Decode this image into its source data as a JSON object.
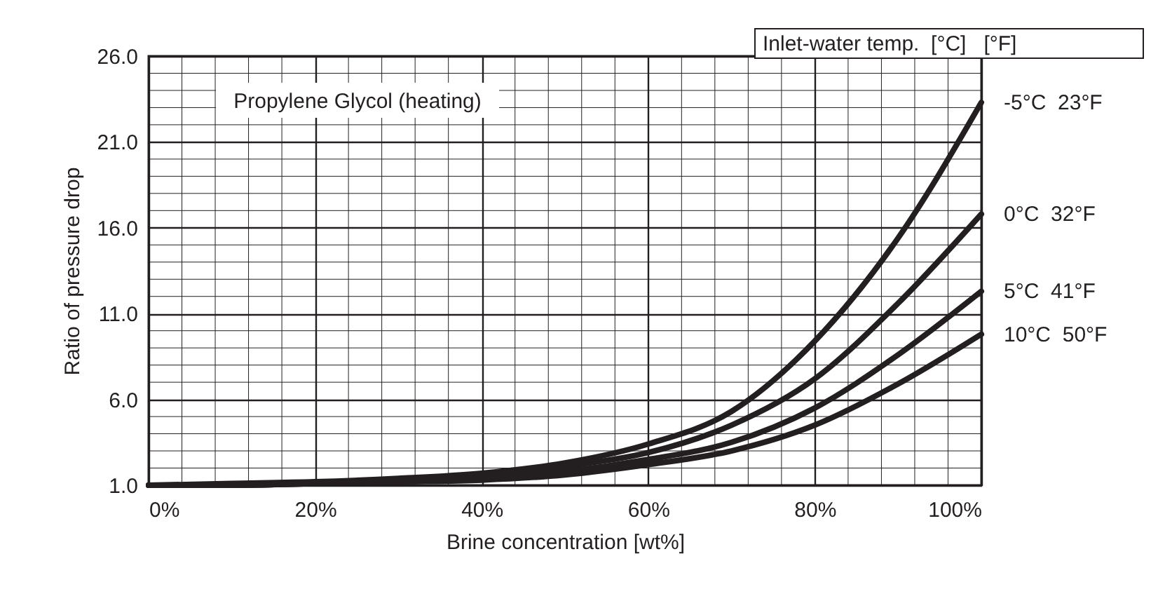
{
  "chart_data": {
    "type": "line",
    "title": "Propylene Glycol (heating)",
    "xlabel": "Brine concentration [wt%]",
    "ylabel": "Ratio of pressure drop",
    "legend_title": "Inlet-water temp.  [°C]   [°F]",
    "x": [
      0,
      10,
      20,
      30,
      40,
      50,
      60,
      70,
      80,
      90,
      100
    ],
    "series": [
      {
        "name": "-5°C  23°F",
        "color": "#231f20",
        "values": [
          1.0,
          1.1,
          1.2,
          1.4,
          1.7,
          2.3,
          3.4,
          5.3,
          9.4,
          15.4,
          23.3
        ]
      },
      {
        "name": "0°C  32°F",
        "color": "#231f20",
        "values": [
          1.0,
          1.0,
          1.1,
          1.3,
          1.6,
          2.1,
          2.9,
          4.5,
          7.2,
          11.6,
          16.8
        ]
      },
      {
        "name": "5°C  41°F",
        "color": "#231f20",
        "values": [
          1.0,
          1.0,
          1.1,
          1.2,
          1.4,
          1.8,
          2.5,
          3.5,
          5.5,
          8.6,
          12.3
        ]
      },
      {
        "name": "10°C  50°F",
        "color": "#231f20",
        "values": [
          1.0,
          1.0,
          1.1,
          1.2,
          1.3,
          1.6,
          2.2,
          3.0,
          4.5,
          6.9,
          9.8
        ]
      }
    ],
    "xlim": [
      0,
      100
    ],
    "ylim": [
      1,
      26
    ],
    "xticks": [
      {
        "value": 0,
        "label": "0%"
      },
      {
        "value": 20,
        "label": "20%"
      },
      {
        "value": 40,
        "label": "40%"
      },
      {
        "value": 60,
        "label": "60%"
      },
      {
        "value": 80,
        "label": "80%"
      },
      {
        "value": 100,
        "label": "100%"
      }
    ],
    "yticks": [
      {
        "value": 1,
        "label": "1.0"
      },
      {
        "value": 6,
        "label": "6.0"
      },
      {
        "value": 11,
        "label": "11.0"
      },
      {
        "value": 16,
        "label": "16.0"
      },
      {
        "value": 21,
        "label": "21.0"
      },
      {
        "value": 26,
        "label": "26.0"
      }
    ],
    "grid": true,
    "legend": false,
    "line_style": "solid",
    "marker": "none"
  }
}
